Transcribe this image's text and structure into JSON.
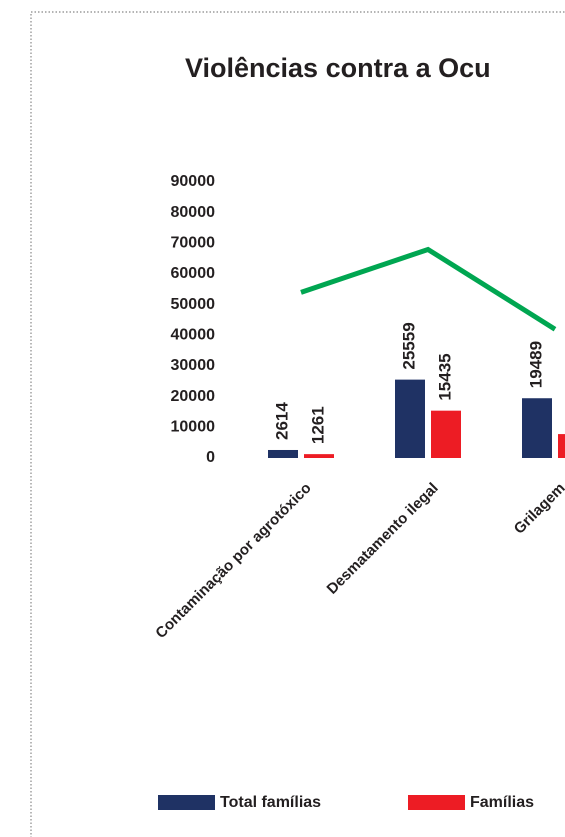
{
  "chart_data": {
    "type": "bar",
    "title": "Violências contra a Ocu",
    "categories": [
      "Contaminação por agrotóxico",
      "Desmatamento ilegal",
      "Grilagem"
    ],
    "series": [
      {
        "name": "Total famílias",
        "color": "#1f3264",
        "values": [
          2614,
          25559,
          19489
        ]
      },
      {
        "name": "Famílias",
        "color": "#ed1c24",
        "values": [
          1261,
          15435,
          7800
        ]
      },
      {
        "type": "line",
        "color": "#00a651",
        "values": [
          54000,
          68000,
          42000
        ]
      }
    ],
    "ylim": [
      0,
      90000
    ],
    "yticks": [
      0,
      10000,
      20000,
      30000,
      40000,
      50000,
      60000,
      70000,
      80000,
      90000
    ]
  }
}
